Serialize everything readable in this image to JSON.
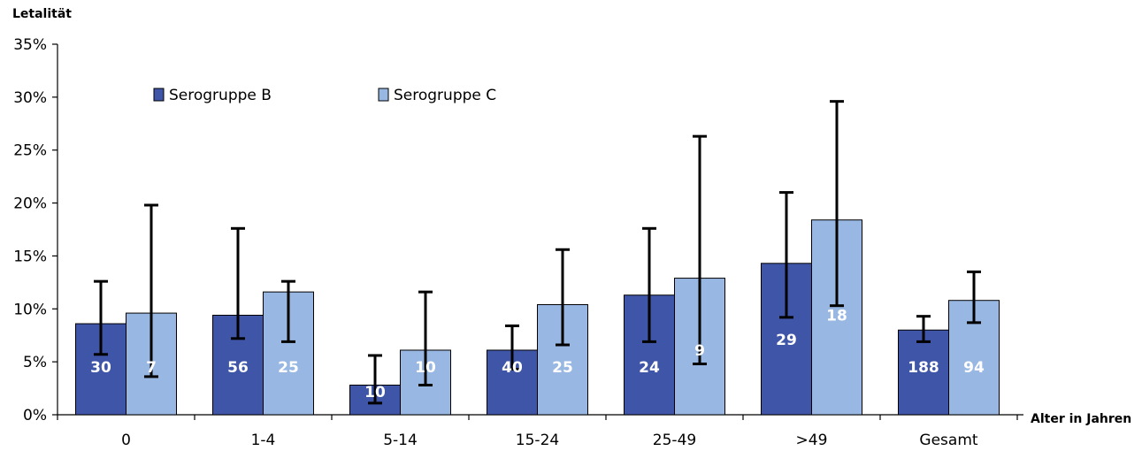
{
  "chart_data": {
    "type": "bar",
    "title": "",
    "ylabel": "Letalität",
    "xlabel": "Alter in Jahren",
    "ylim": [
      0,
      35
    ],
    "yticks": [
      "0%",
      "5%",
      "10%",
      "15%",
      "20%",
      "25%",
      "30%",
      "35%"
    ],
    "ytick_values": [
      0,
      5,
      10,
      15,
      20,
      25,
      30,
      35
    ],
    "grid": false,
    "legend_position": "top-left",
    "categories": [
      "0",
      "1-4",
      "5-14",
      "15-24",
      "25-49",
      ">49",
      "Gesamt"
    ],
    "series": [
      {
        "name": "Serogruppe B",
        "color": "#3f55a8",
        "values": [
          8.6,
          9.4,
          2.8,
          6.1,
          11.3,
          14.3,
          8.0
        ],
        "err_low": [
          5.7,
          7.2,
          1.1,
          4.3,
          6.9,
          9.2,
          6.9
        ],
        "err_high": [
          12.6,
          17.6,
          5.6,
          8.4,
          17.6,
          21.0,
          9.3
        ],
        "labels": [
          "30",
          "56",
          "10",
          "40",
          "24",
          "29",
          "188"
        ]
      },
      {
        "name": "Serogruppe C",
        "color": "#98b7e2",
        "values": [
          9.6,
          11.6,
          6.1,
          10.4,
          12.9,
          18.4,
          10.8
        ],
        "err_low": [
          3.6,
          6.9,
          2.8,
          6.6,
          4.8,
          10.3,
          8.7
        ],
        "err_high": [
          19.8,
          12.6,
          11.6,
          15.6,
          26.3,
          29.6,
          13.5
        ],
        "labels": [
          "7",
          "25",
          "10",
          "25",
          "9",
          "18",
          "94"
        ]
      }
    ]
  }
}
